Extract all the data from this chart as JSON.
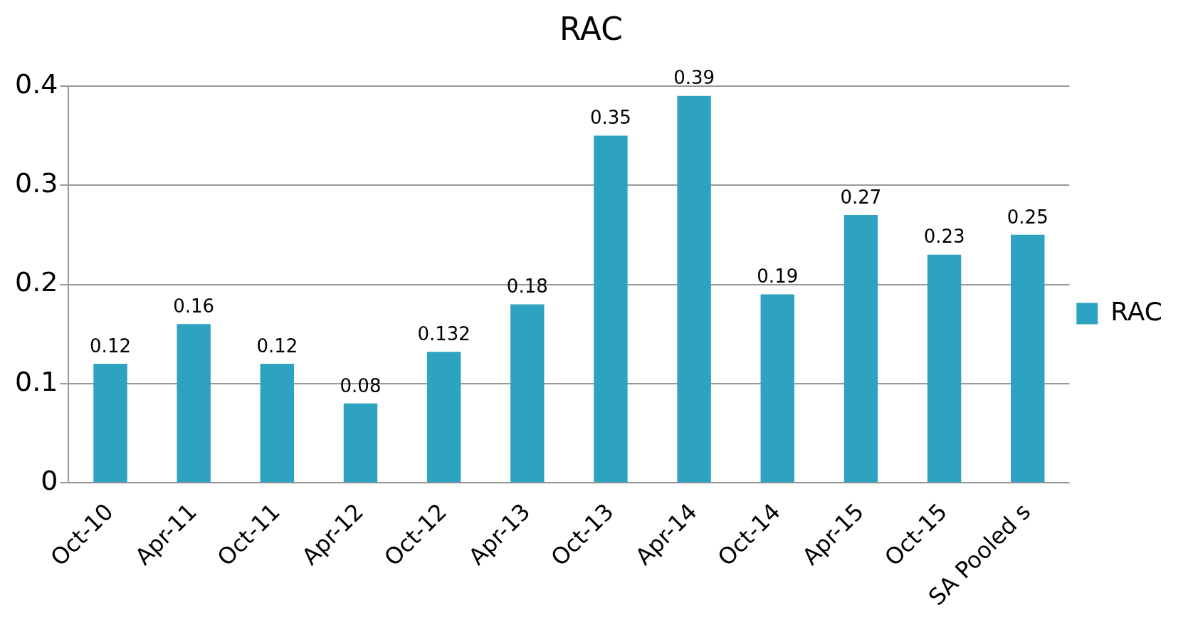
{
  "chart_data": {
    "type": "bar",
    "title": "RAC",
    "categories": [
      "Oct-10",
      "Apr-11",
      "Oct-11",
      "Apr-12",
      "Oct-12",
      "Apr-13",
      "Oct-13",
      "Apr-14",
      "Oct-14",
      "Apr-15",
      "Oct-15",
      "SA Pooled s"
    ],
    "series": [
      {
        "name": "RAC",
        "color": "#2ea3c1",
        "values": [
          0.12,
          0.16,
          0.12,
          0.08,
          0.132,
          0.18,
          0.35,
          0.39,
          0.19,
          0.27,
          0.23,
          0.25
        ]
      }
    ],
    "ylim": [
      0,
      0.4
    ],
    "yticks": [
      0,
      0.1,
      0.2,
      0.3,
      0.4
    ],
    "grid": "y",
    "legend": "right",
    "data_labels": true
  }
}
